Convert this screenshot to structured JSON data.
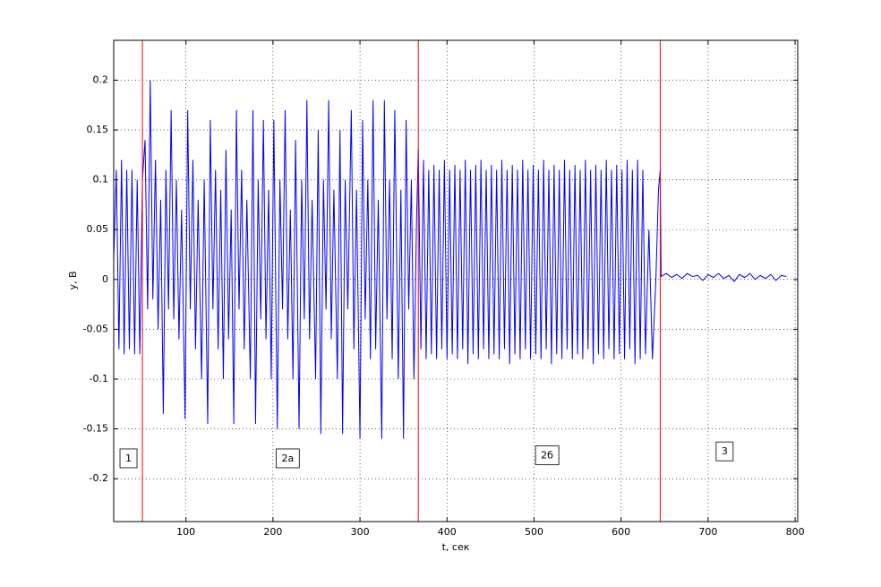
{
  "chart_data": {
    "type": "line",
    "xlabel": "t, сек",
    "ylabel": "y, В",
    "xlim": [
      17,
      803
    ],
    "ylim": [
      -0.243,
      0.24
    ],
    "xticks": [
      100,
      200,
      300,
      400,
      500,
      600,
      700,
      800
    ],
    "yticks": [
      -0.2,
      -0.15,
      -0.1,
      -0.05,
      0,
      0.05,
      0.1,
      0.15,
      0.2
    ],
    "grid": true,
    "color": "#0000ff",
    "vline_color": "#ff0000",
    "vlines": [
      50,
      367,
      645
    ],
    "annotations": [
      {
        "text": "1",
        "x": 34,
        "y": -0.18
      },
      {
        "text": "2а",
        "x": 217,
        "y": -0.18
      },
      {
        "text": "2б",
        "x": 515,
        "y": -0.177
      },
      {
        "text": "3",
        "x": 719,
        "y": -0.173
      }
    ],
    "x": [
      17,
      20,
      23,
      26,
      29,
      32,
      35,
      38,
      41,
      44,
      47,
      50,
      53,
      56,
      59,
      62,
      65,
      68,
      71,
      74,
      77,
      80,
      83,
      86,
      89,
      92,
      95,
      99,
      102,
      105,
      108,
      111,
      114,
      118,
      121,
      125,
      128,
      131,
      134,
      137,
      140,
      143,
      146,
      149,
      152,
      155,
      158,
      161,
      164,
      167,
      170,
      174,
      177,
      180,
      183,
      186,
      189,
      192,
      195,
      198,
      201,
      205,
      208,
      211,
      214,
      217,
      220,
      223,
      226,
      230,
      233,
      236,
      239,
      242,
      245,
      249,
      252,
      255,
      258,
      261,
      264,
      267,
      270,
      274,
      277,
      280,
      283,
      286,
      290,
      293,
      296,
      300,
      303,
      306,
      309,
      312,
      315,
      318,
      321,
      325,
      328,
      331,
      334,
      337,
      340,
      344,
      347,
      350,
      353,
      356,
      359,
      362,
      365,
      367,
      370,
      373,
      376,
      379,
      382,
      385,
      388,
      391,
      394,
      397,
      400,
      403,
      406,
      409,
      412,
      415,
      418,
      421,
      424,
      427,
      430,
      433,
      436,
      439,
      442,
      445,
      448,
      451,
      454,
      457,
      460,
      463,
      466,
      469,
      472,
      475,
      478,
      481,
      484,
      487,
      490,
      493,
      496,
      499,
      502,
      505,
      508,
      511,
      514,
      517,
      520,
      523,
      526,
      529,
      532,
      535,
      538,
      541,
      544,
      547,
      550,
      553,
      556,
      559,
      562,
      565,
      568,
      571,
      574,
      577,
      580,
      583,
      586,
      589,
      592,
      595,
      598,
      601,
      604,
      607,
      610,
      613,
      616,
      619,
      622,
      625,
      628,
      632,
      636,
      640,
      643,
      645,
      646,
      652,
      658,
      664,
      670,
      676,
      682,
      688,
      694,
      700,
      706,
      712,
      718,
      724,
      730,
      736,
      742,
      748,
      754,
      760,
      766,
      772,
      778,
      784,
      790
    ],
    "values": [
      0.02,
      0.11,
      -0.07,
      0.12,
      -0.075,
      0.11,
      -0.07,
      0.11,
      -0.075,
      0.1,
      -0.075,
      0.1,
      0.14,
      -0.03,
      0.2,
      -0.02,
      0.12,
      -0.05,
      0.08,
      -0.135,
      0.11,
      -0.03,
      0.17,
      -0.04,
      0.1,
      -0.06,
      0.07,
      -0.14,
      0.17,
      -0.03,
      0.12,
      -0.07,
      0.08,
      -0.1,
      0.1,
      -0.145,
      0.16,
      -0.03,
      0.11,
      -0.07,
      0.09,
      -0.1,
      0.13,
      -0.06,
      0.07,
      -0.145,
      0.17,
      -0.03,
      0.11,
      -0.07,
      0.08,
      -0.1,
      0.17,
      -0.145,
      0.1,
      -0.04,
      0.16,
      -0.06,
      0.09,
      -0.1,
      0.16,
      -0.15,
      0.1,
      -0.03,
      0.17,
      -0.06,
      0.07,
      -0.1,
      0.14,
      -0.15,
      0.1,
      -0.04,
      0.18,
      -0.06,
      0.08,
      -0.1,
      0.15,
      -0.155,
      0.1,
      -0.03,
      0.18,
      -0.06,
      0.09,
      -0.1,
      0.15,
      -0.155,
      0.1,
      -0.03,
      0.17,
      -0.07,
      0.09,
      -0.16,
      0.16,
      -0.04,
      0.1,
      -0.08,
      0.18,
      -0.07,
      0.08,
      -0.16,
      0.18,
      -0.04,
      0.1,
      -0.08,
      0.17,
      -0.1,
      0.09,
      -0.16,
      0.16,
      -0.03,
      0.1,
      -0.1,
      0.06,
      0.13,
      -0.07,
      0.12,
      -0.08,
      0.11,
      -0.075,
      0.115,
      -0.08,
      0.11,
      -0.07,
      0.12,
      -0.08,
      0.11,
      -0.075,
      0.115,
      -0.08,
      0.11,
      -0.07,
      0.12,
      -0.085,
      0.11,
      -0.075,
      0.115,
      -0.08,
      0.12,
      -0.07,
      0.11,
      -0.08,
      0.115,
      -0.075,
      0.11,
      -0.08,
      0.12,
      -0.07,
      0.11,
      -0.085,
      0.115,
      -0.075,
      0.11,
      -0.08,
      0.12,
      -0.07,
      0.11,
      -0.08,
      0.115,
      -0.075,
      0.11,
      -0.08,
      0.12,
      -0.07,
      0.11,
      -0.085,
      0.115,
      -0.075,
      0.11,
      -0.08,
      0.12,
      -0.07,
      0.11,
      -0.08,
      0.115,
      -0.075,
      0.11,
      -0.08,
      0.12,
      -0.07,
      0.11,
      -0.085,
      0.115,
      -0.075,
      0.11,
      -0.08,
      0.12,
      -0.07,
      0.11,
      -0.08,
      0.115,
      -0.075,
      0.11,
      -0.08,
      0.12,
      -0.07,
      0.11,
      -0.085,
      0.12,
      -0.08,
      0.11,
      -0.075,
      0.05,
      -0.08,
      0,
      0.09,
      0.11,
      0.003,
      0.006,
      0.002,
      0.005,
      0.001,
      0.006,
      0.003,
      0.004,
      -0.001,
      0.005,
      0.002,
      0.006,
      0.001,
      0.004,
      -0.002,
      0.005,
      0.002,
      0.006,
      0,
      0.004,
      0.001,
      0.005,
      -0.001,
      0.004,
      0.003
    ]
  }
}
